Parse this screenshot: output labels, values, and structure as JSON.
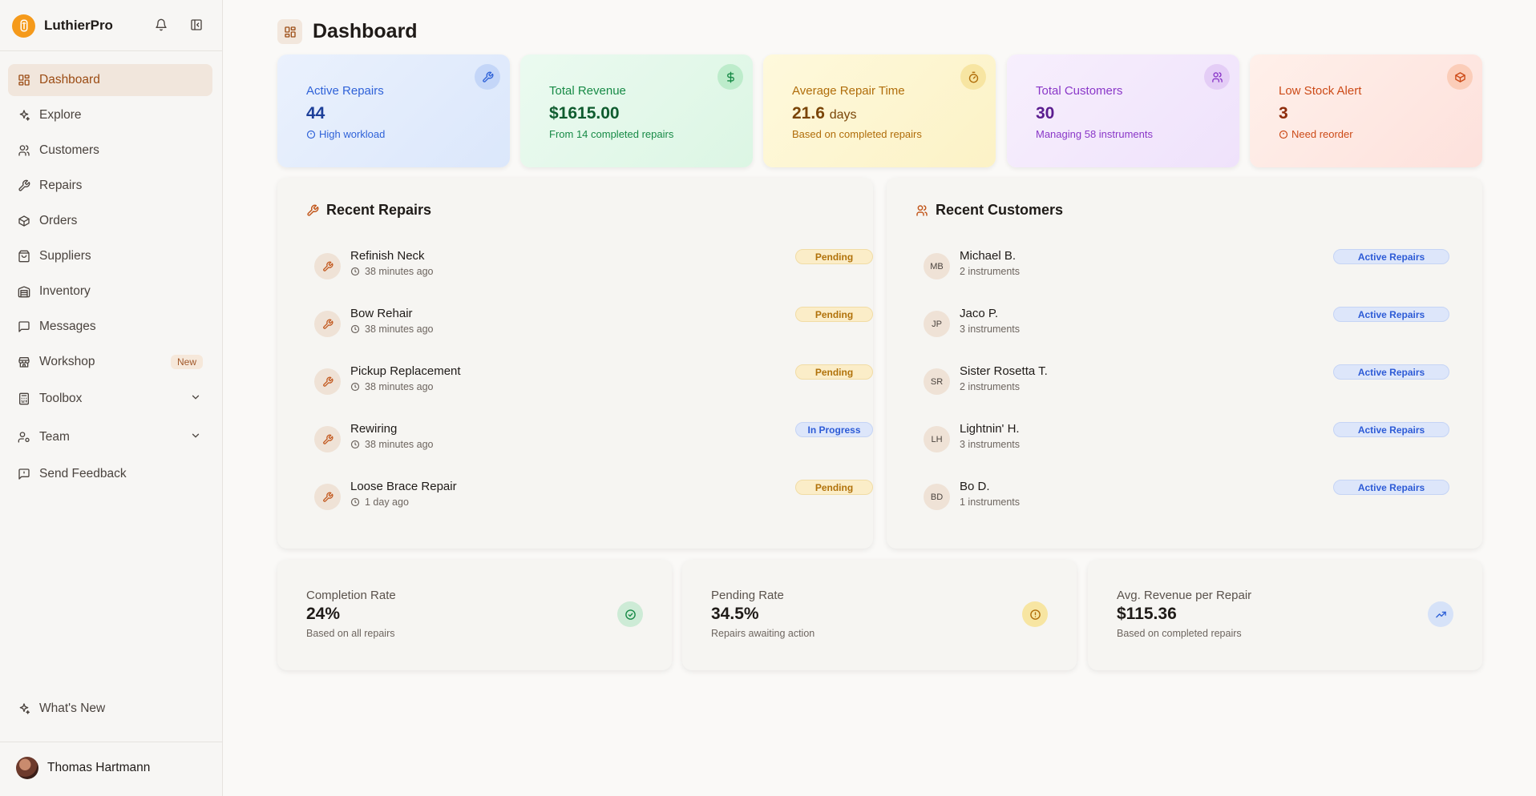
{
  "app": {
    "name": "LuthierPro"
  },
  "sidebar": {
    "items": [
      {
        "label": "Dashboard"
      },
      {
        "label": "Explore"
      },
      {
        "label": "Customers"
      },
      {
        "label": "Repairs"
      },
      {
        "label": "Orders"
      },
      {
        "label": "Suppliers"
      },
      {
        "label": "Inventory"
      },
      {
        "label": "Messages"
      },
      {
        "label": "Workshop",
        "badge": "New"
      },
      {
        "label": "Toolbox"
      },
      {
        "label": "Team"
      },
      {
        "label": "Send Feedback"
      }
    ],
    "whats_new": "What's New",
    "user": {
      "name": "Thomas Hartmann"
    }
  },
  "page": {
    "title": "Dashboard"
  },
  "stats": [
    {
      "label": "Active Repairs",
      "value": "44",
      "sub": "High workload",
      "color": "#2f62d8",
      "bg": "#dbe8fb"
    },
    {
      "label": "Total Revenue",
      "value": "$1615.00",
      "sub": "From 14 completed repairs",
      "color": "#178a46",
      "bg": "#def7e6"
    },
    {
      "label": "Average Repair Time",
      "value": "21.6",
      "unit": "days",
      "sub": "Based on completed repairs",
      "color": "#b06d0a",
      "bg": "#fdf5cf"
    },
    {
      "label": "Total Customers",
      "value": "30",
      "sub": "Managing 58 instruments",
      "color": "#8a37c8",
      "bg": "#f2e6fb"
    },
    {
      "label": "Low Stock Alert",
      "value": "3",
      "sub": "Need reorder",
      "color": "#cc4a17",
      "bg": "#fde6df"
    }
  ],
  "recent_repairs": {
    "title": "Recent Repairs",
    "items": [
      {
        "name": "Refinish Neck",
        "time": "38 minutes ago",
        "status": "Pending"
      },
      {
        "name": "Bow Rehair",
        "time": "38 minutes ago",
        "status": "Pending"
      },
      {
        "name": "Pickup Replacement",
        "time": "38 minutes ago",
        "status": "Pending"
      },
      {
        "name": "Rewiring",
        "time": "38 minutes ago",
        "status": "In Progress"
      },
      {
        "name": "Loose Brace Repair",
        "time": "1 day ago",
        "status": "Pending"
      }
    ]
  },
  "recent_customers": {
    "title": "Recent Customers",
    "items": [
      {
        "initials": "MB",
        "name": "Michael B.",
        "instruments": "2 instruments",
        "status": "Active Repairs"
      },
      {
        "initials": "JP",
        "name": "Jaco P.",
        "instruments": "3 instruments",
        "status": "Active Repairs"
      },
      {
        "initials": "SR",
        "name": "Sister Rosetta T.",
        "instruments": "2 instruments",
        "status": "Active Repairs"
      },
      {
        "initials": "LH",
        "name": "Lightnin' H.",
        "instruments": "3 instruments",
        "status": "Active Repairs"
      },
      {
        "initials": "BD",
        "name": "Bo D.",
        "instruments": "1 instruments",
        "status": "Active Repairs"
      }
    ]
  },
  "metrics": [
    {
      "label": "Completion Rate",
      "value": "24%",
      "sub": "Based on all repairs"
    },
    {
      "label": "Pending Rate",
      "value": "34.5%",
      "sub": "Repairs awaiting action"
    },
    {
      "label": "Avg. Revenue per Repair",
      "value": "$115.36",
      "sub": "Based on completed repairs"
    }
  ]
}
